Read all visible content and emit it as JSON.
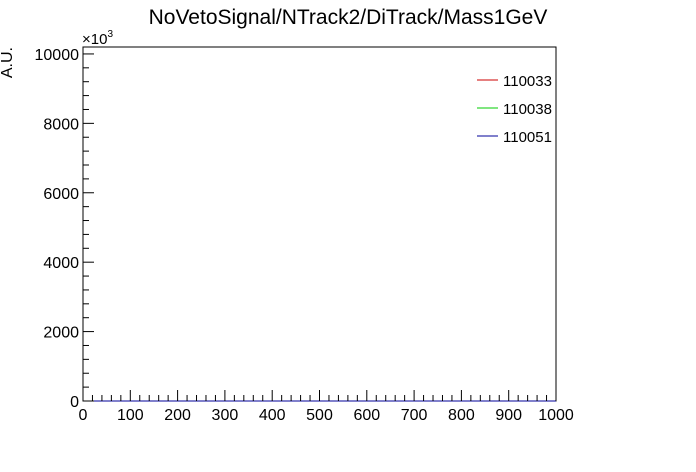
{
  "chart_data": {
    "type": "line",
    "title": "NoVetoSignal/NTrack2/DiTrack/Mass1GeV",
    "xlabel": "",
    "ylabel": "A.U.",
    "xlim": [
      0,
      1000
    ],
    "ylim": [
      0,
      10200
    ],
    "y_multiplier_label": "×10",
    "y_multiplier_exponent": "3",
    "x_ticks": [
      "0",
      "100",
      "200",
      "300",
      "400",
      "500",
      "600",
      "700",
      "800",
      "900",
      "1000"
    ],
    "y_ticks": [
      "0",
      "2000",
      "4000",
      "6000",
      "8000",
      "10000"
    ],
    "legend_position": "top-right",
    "grid": false,
    "series": [
      {
        "name": "110033",
        "color": "#cc0000",
        "x": [
          0,
          1000
        ],
        "y": [
          0,
          0
        ]
      },
      {
        "name": "110038",
        "color": "#00cc00",
        "x": [
          0,
          1000
        ],
        "y": [
          0,
          0
        ]
      },
      {
        "name": "110051",
        "color": "#000099",
        "x": [
          0,
          1000
        ],
        "y": [
          0,
          0
        ]
      }
    ]
  }
}
